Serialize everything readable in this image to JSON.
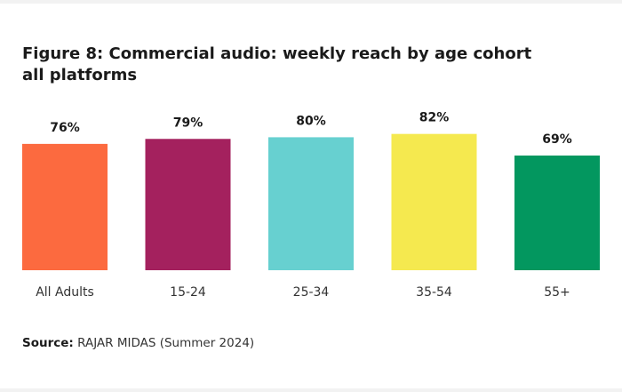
{
  "chart_data": {
    "type": "bar",
    "title_lines": [
      "Figure 8: Commercial audio: weekly reach by age cohort",
      "all platforms"
    ],
    "categories": [
      "All Adults",
      "15-24",
      "25-34",
      "35-54",
      "55+"
    ],
    "values": [
      76,
      79,
      80,
      82,
      69
    ],
    "value_labels": [
      "76%",
      "79%",
      "80%",
      "82%",
      "69%"
    ],
    "colors": [
      "#fc6a3f",
      "#a4215e",
      "#67d0d0",
      "#f5e94f",
      "#03975f"
    ],
    "unit": "%",
    "ylim": [
      0,
      100
    ],
    "grid": false,
    "legend": "none"
  },
  "source": {
    "label": "Source:",
    "text": " RAJAR MIDAS (Summer 2024)"
  }
}
